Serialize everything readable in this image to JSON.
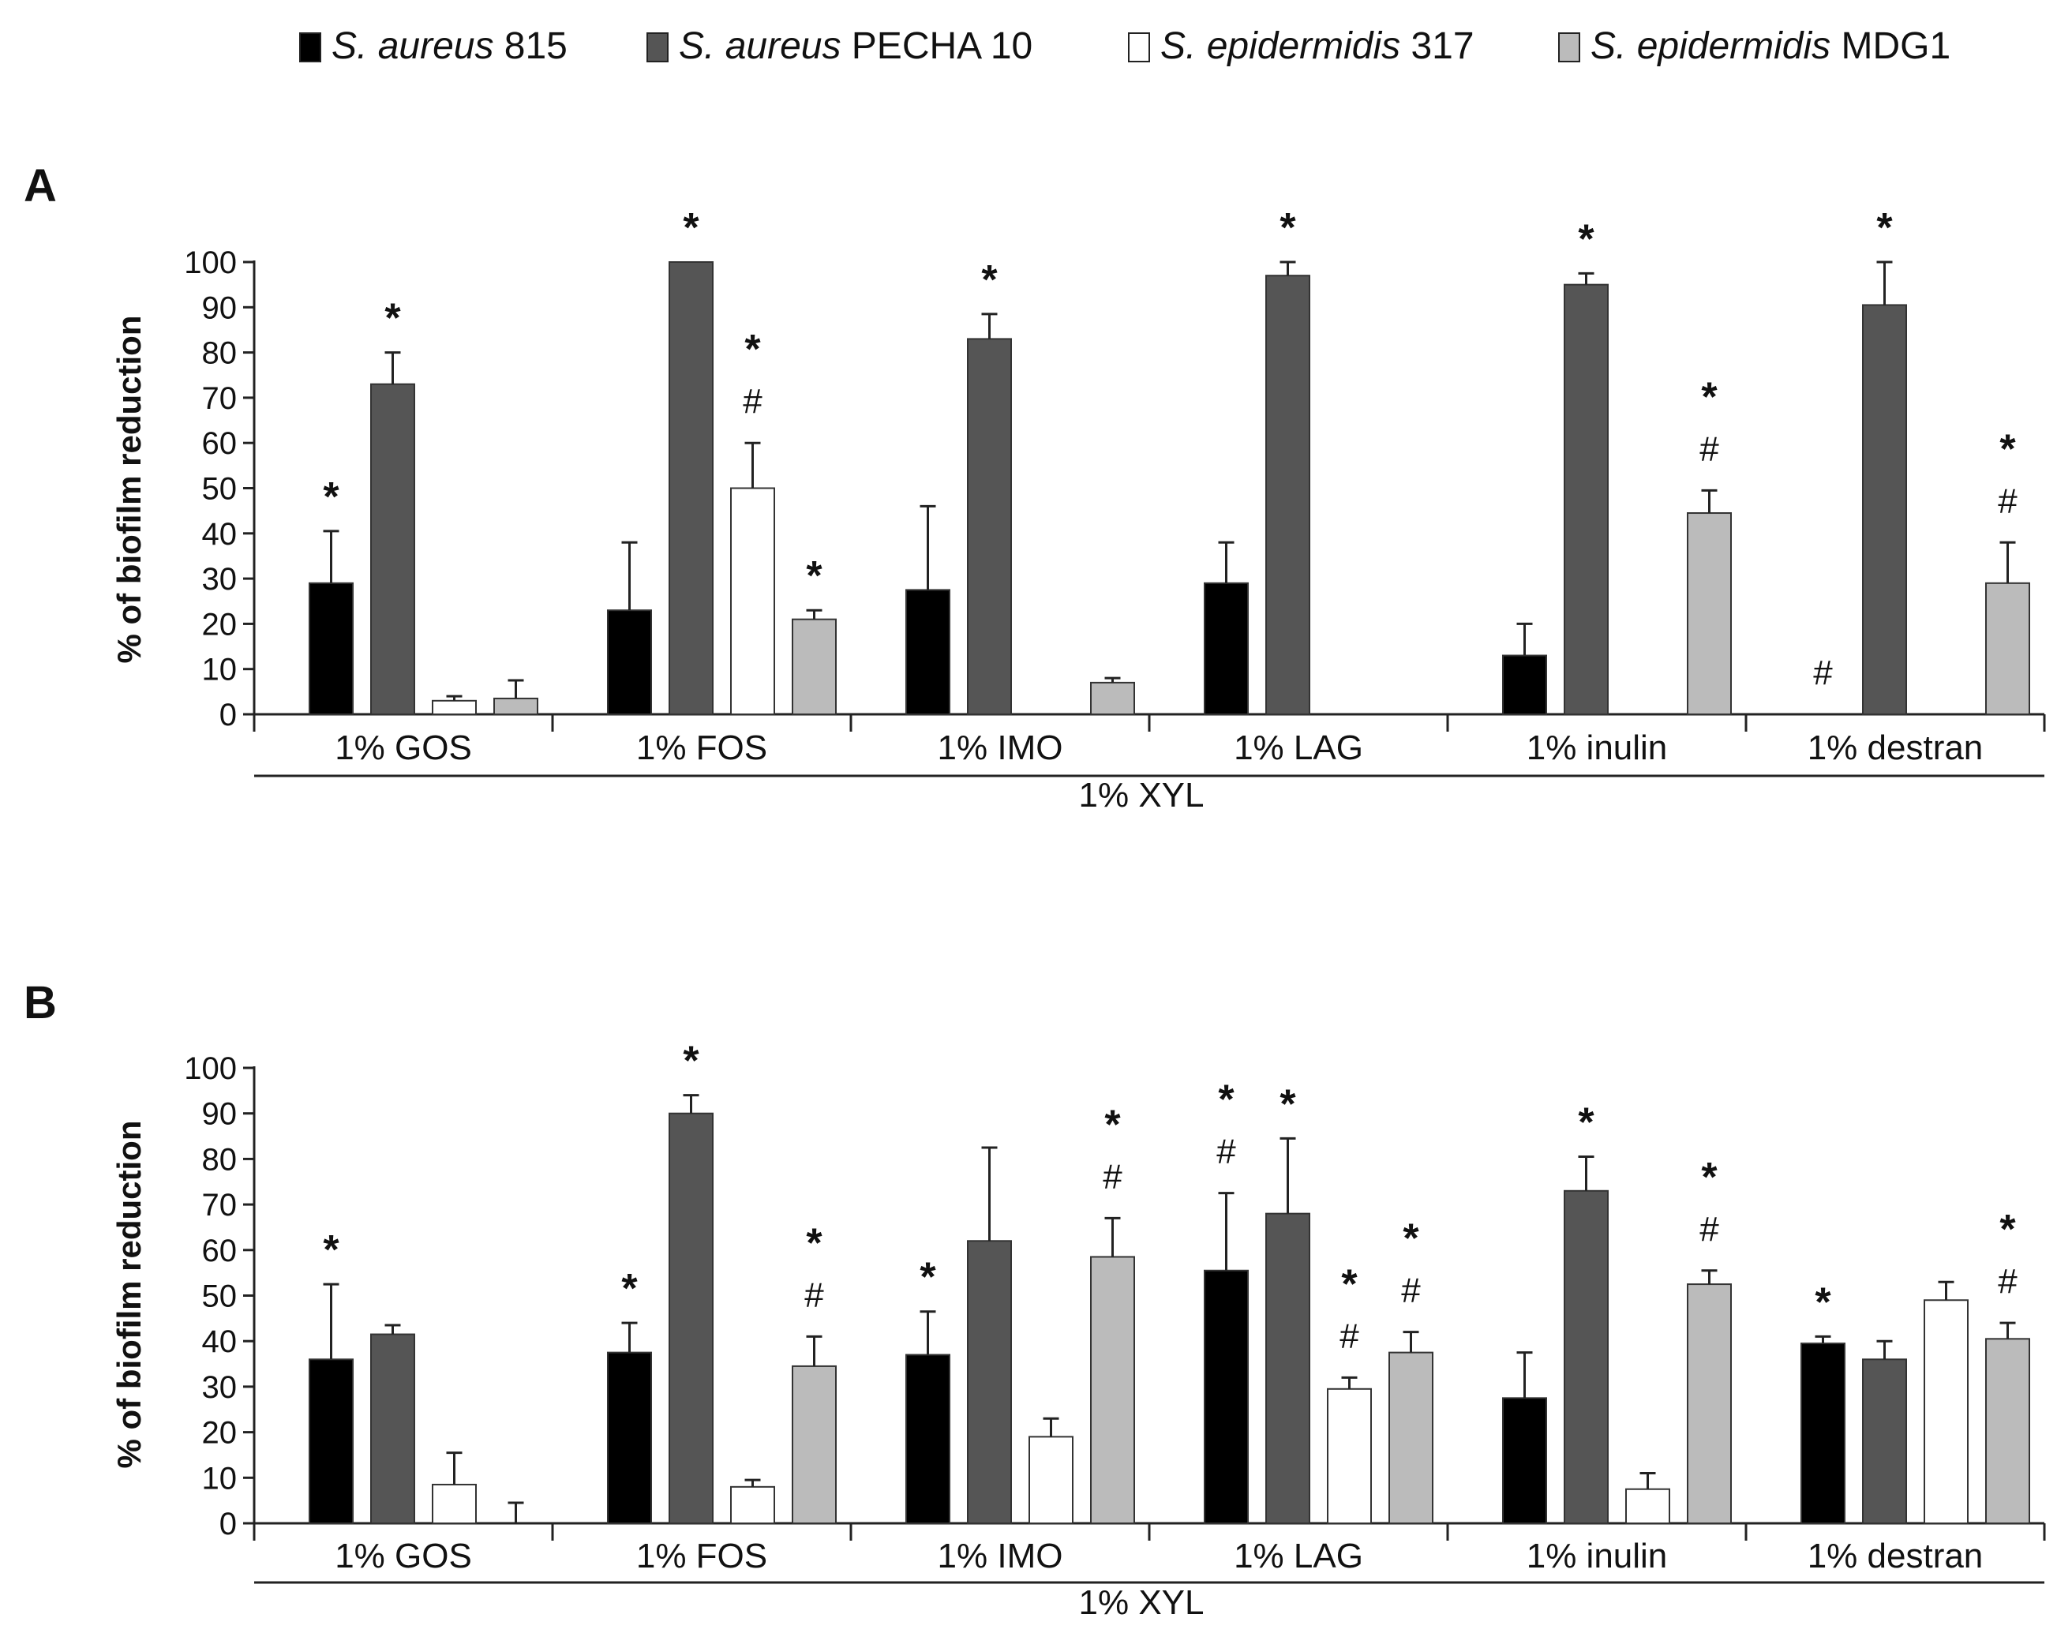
{
  "legend": {
    "placement": "top",
    "items": [
      {
        "italic": "S. aureus",
        "rest": " 815",
        "color": "#000000"
      },
      {
        "italic": "S. aureus",
        "rest": " PECHA 10",
        "color": "#555555"
      },
      {
        "italic": "S. epidermidis",
        "rest": " 317",
        "color": "#ffffff"
      },
      {
        "italic": "S. epidermidis",
        "rest": " MDG1",
        "color": "#bbbbbb"
      }
    ]
  },
  "chart_data": [
    {
      "type": "bar",
      "panel_label": "A",
      "ylabel": "% of biofilm reduction",
      "ylim": [
        0,
        100
      ],
      "yticks": [
        0,
        10,
        20,
        30,
        40,
        50,
        60,
        70,
        80,
        90,
        100
      ],
      "categories": [
        "1% GOS",
        "1% FOS",
        "1% IMO",
        "1% LAG",
        "1% inulin",
        "1% destran"
      ],
      "group_label": "1% XYL",
      "series": [
        {
          "name": "S. aureus 815",
          "values": [
            29,
            23,
            27.5,
            29,
            13,
            null
          ],
          "errors": [
            11.5,
            15,
            18.5,
            9,
            7,
            null
          ]
        },
        {
          "name": "S. aureus PECHA 10",
          "values": [
            73,
            100,
            83,
            97,
            95,
            90.5
          ],
          "errors": [
            7,
            0,
            5.5,
            3,
            2.5,
            9.5
          ]
        },
        {
          "name": "S. epidermidis 317",
          "values": [
            3,
            50,
            null,
            null,
            null,
            null
          ],
          "errors": [
            1,
            10,
            null,
            null,
            null,
            null
          ]
        },
        {
          "name": "S. epidermidis MDG1",
          "values": [
            3.5,
            21,
            7,
            null,
            44.5,
            29
          ],
          "errors": [
            4,
            2,
            1,
            null,
            5,
            9
          ]
        }
      ],
      "annotations": [
        {
          "category": 0,
          "series": 0,
          "marks": [
            "*"
          ]
        },
        {
          "category": 0,
          "series": 1,
          "marks": [
            "*"
          ]
        },
        {
          "category": 1,
          "series": 1,
          "marks": [
            "*"
          ]
        },
        {
          "category": 1,
          "series": 2,
          "marks": [
            "*",
            "#"
          ]
        },
        {
          "category": 1,
          "series": 3,
          "marks": [
            "*"
          ]
        },
        {
          "category": 2,
          "series": 1,
          "marks": [
            "*"
          ]
        },
        {
          "category": 3,
          "series": 1,
          "marks": [
            "*"
          ]
        },
        {
          "category": 4,
          "series": 1,
          "marks": [
            "*"
          ]
        },
        {
          "category": 4,
          "series": 3,
          "marks": [
            "*",
            "#"
          ]
        },
        {
          "category": 5,
          "series": 0,
          "marks": [
            "#"
          ]
        },
        {
          "category": 5,
          "series": 1,
          "marks": [
            "*"
          ]
        },
        {
          "category": 5,
          "series": 3,
          "marks": [
            "*",
            "#"
          ]
        }
      ]
    },
    {
      "type": "bar",
      "panel_label": "B",
      "ylabel": "% of biofilm reduction",
      "ylim": [
        0,
        100
      ],
      "yticks": [
        0,
        10,
        20,
        30,
        40,
        50,
        60,
        70,
        80,
        90,
        100
      ],
      "categories": [
        "1% GOS",
        "1% FOS",
        "1% IMO",
        "1% LAG",
        "1% inulin",
        "1% destran"
      ],
      "group_label": "1% XYL",
      "series": [
        {
          "name": "S. aureus 815",
          "values": [
            36,
            37.5,
            37,
            55.5,
            27.5,
            39.5
          ],
          "errors": [
            16.5,
            6.5,
            9.5,
            17,
            10,
            1.5
          ]
        },
        {
          "name": "S. aureus PECHA 10",
          "values": [
            41.5,
            90,
            62,
            68,
            73,
            36
          ],
          "errors": [
            2,
            4,
            20.5,
            16.5,
            7.5,
            4
          ]
        },
        {
          "name": "S. epidermidis 317",
          "values": [
            8.5,
            8,
            19,
            29.5,
            7.5,
            49
          ],
          "errors": [
            7,
            1.5,
            4,
            2.5,
            3.5,
            4
          ]
        },
        {
          "name": "S. epidermidis MDG1",
          "values": [
            0,
            34.5,
            58.5,
            37.5,
            52.5,
            40.5
          ],
          "errors": [
            4.5,
            6.5,
            8.5,
            4.5,
            3,
            3.5
          ]
        }
      ],
      "annotations": [
        {
          "category": 0,
          "series": 0,
          "marks": [
            "*"
          ]
        },
        {
          "category": 1,
          "series": 0,
          "marks": [
            "*"
          ]
        },
        {
          "category": 1,
          "series": 1,
          "marks": [
            "*"
          ]
        },
        {
          "category": 1,
          "series": 3,
          "marks": [
            "*",
            "#"
          ]
        },
        {
          "category": 2,
          "series": 0,
          "marks": [
            "*"
          ]
        },
        {
          "category": 2,
          "series": 3,
          "marks": [
            "*",
            "#"
          ]
        },
        {
          "category": 3,
          "series": 0,
          "marks": [
            "*",
            "#"
          ]
        },
        {
          "category": 3,
          "series": 1,
          "marks": [
            "*"
          ]
        },
        {
          "category": 3,
          "series": 2,
          "marks": [
            "*",
            "#"
          ]
        },
        {
          "category": 3,
          "series": 3,
          "marks": [
            "*",
            "#"
          ]
        },
        {
          "category": 4,
          "series": 1,
          "marks": [
            "*"
          ]
        },
        {
          "category": 4,
          "series": 3,
          "marks": [
            "*",
            "#"
          ]
        },
        {
          "category": 5,
          "series": 0,
          "marks": [
            "*"
          ]
        },
        {
          "category": 5,
          "series": 3,
          "marks": [
            "*",
            "#"
          ]
        }
      ]
    }
  ]
}
